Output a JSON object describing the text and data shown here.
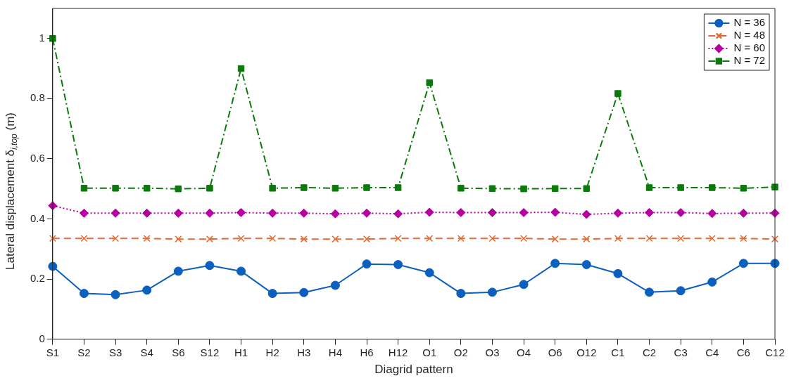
{
  "chart_data": {
    "type": "line",
    "xlabel": "Diagrid pattern",
    "ylabel": "Lateral displacement δ$_{i,top}$ (m)",
    "categories": [
      "S1",
      "S2",
      "S3",
      "S4",
      "S6",
      "S12",
      "H1",
      "H2",
      "H3",
      "H4",
      "H6",
      "H12",
      "O1",
      "O2",
      "O3",
      "O4",
      "O6",
      "O12",
      "C1",
      "C2",
      "C3",
      "C4",
      "C6",
      "C12"
    ],
    "series": [
      {
        "name": "N = 36",
        "color": "#0a5fbf",
        "marker": "circle",
        "line_style": "solid",
        "values": [
          0.242,
          0.152,
          0.148,
          0.163,
          0.226,
          0.245,
          0.226,
          0.152,
          0.155,
          0.179,
          0.25,
          0.248,
          0.221,
          0.152,
          0.156,
          0.182,
          0.252,
          0.248,
          0.218,
          0.156,
          0.161,
          0.19,
          0.252,
          0.252
        ]
      },
      {
        "name": "N = 48",
        "color": "#e8692e",
        "marker": "cross",
        "line_style": "dashed",
        "values": [
          0.335,
          0.335,
          0.335,
          0.335,
          0.333,
          0.333,
          0.335,
          0.335,
          0.333,
          0.333,
          0.333,
          0.335,
          0.335,
          0.335,
          0.335,
          0.335,
          0.333,
          0.333,
          0.335,
          0.335,
          0.335,
          0.335,
          0.335,
          0.333
        ]
      },
      {
        "name": "N = 60",
        "color": "#b5009f",
        "marker": "diamond",
        "line_style": "dotted",
        "values": [
          0.444,
          0.419,
          0.419,
          0.419,
          0.419,
          0.419,
          0.421,
          0.419,
          0.419,
          0.417,
          0.419,
          0.417,
          0.422,
          0.421,
          0.421,
          0.421,
          0.422,
          0.415,
          0.419,
          0.421,
          0.421,
          0.418,
          0.419,
          0.419
        ]
      },
      {
        "name": "N = 72",
        "color": "#0a7a0a",
        "marker": "square",
        "line_style": "dashdot",
        "values": [
          1.0,
          0.502,
          0.502,
          0.502,
          0.5,
          0.502,
          0.9,
          0.502,
          0.504,
          0.502,
          0.504,
          0.504,
          0.853,
          0.502,
          0.501,
          0.5,
          0.501,
          0.501,
          0.817,
          0.504,
          0.504,
          0.504,
          0.502,
          0.506
        ]
      }
    ],
    "ylim": [
      0,
      1.1
    ],
    "yticks": [
      0,
      0.2,
      0.4,
      0.6,
      0.8,
      1
    ],
    "grid": false,
    "legend": "top right"
  }
}
